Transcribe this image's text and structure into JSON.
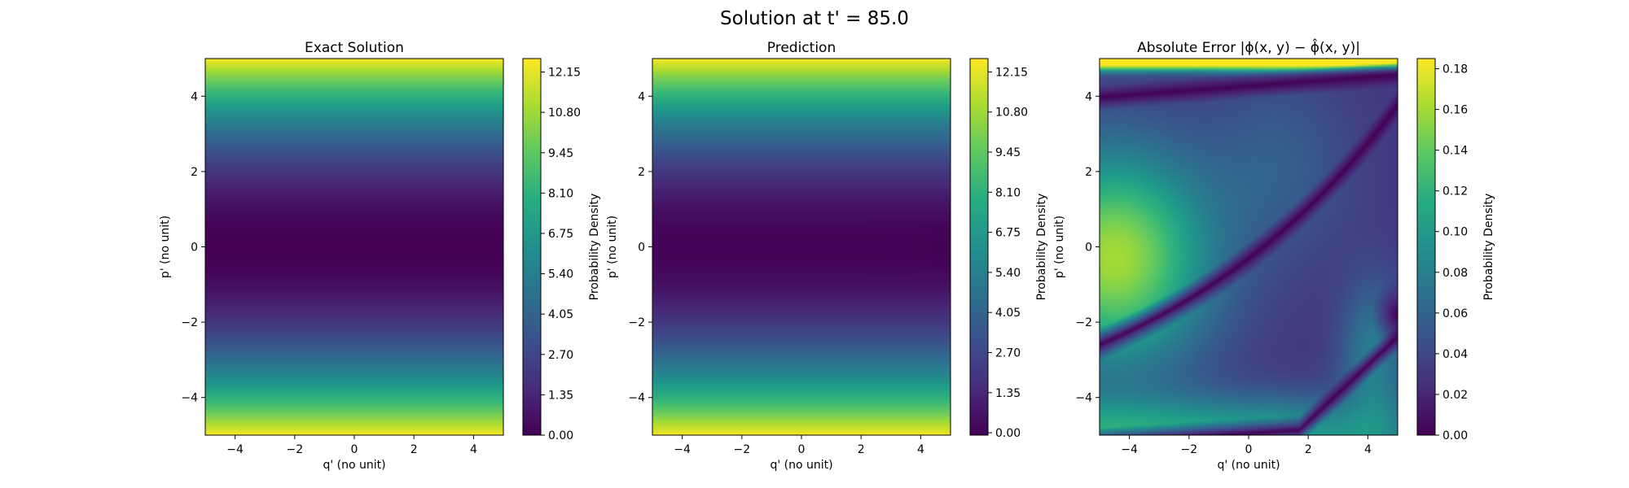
{
  "figure": {
    "suptitle": "Solution at t' = 85.0"
  },
  "chart_data": [
    {
      "type": "heatmap",
      "title": "Exact Solution",
      "xlabel": "q' (no unit)",
      "ylabel": "p' (no unit)",
      "xlim": [
        -5,
        5
      ],
      "ylim": [
        -5,
        5
      ],
      "xticks": [
        -4,
        -2,
        0,
        2,
        4
      ],
      "yticks": [
        4,
        2,
        0,
        -2,
        -4
      ],
      "xtick_labels": [
        "−4",
        "−2",
        "0",
        "2",
        "4"
      ],
      "ytick_labels": [
        "4",
        "2",
        "0",
        "−2",
        "−4"
      ],
      "colormap": "viridis",
      "colorbar": {
        "label": "Probability Density",
        "range": [
          0,
          12.6
        ],
        "ticks": [
          0,
          1.35,
          2.7,
          4.05,
          5.4,
          6.75,
          8.1,
          9.45,
          10.8,
          12.15
        ],
        "tick_labels": [
          "0.00",
          "1.35",
          "2.70",
          "4.05",
          "5.40",
          "6.75",
          "8.10",
          "9.45",
          "10.80",
          "12.15"
        ]
      },
      "field": "p^2 / 2"
    },
    {
      "type": "heatmap",
      "title": "Prediction",
      "xlabel": "q' (no unit)",
      "ylabel": "p' (no unit)",
      "xlim": [
        -5,
        5
      ],
      "ylim": [
        -5,
        5
      ],
      "xticks": [
        -4,
        -2,
        0,
        2,
        4
      ],
      "yticks": [
        4,
        2,
        0,
        -2,
        -4
      ],
      "xtick_labels": [
        "−4",
        "−2",
        "0",
        "2",
        "4"
      ],
      "ytick_labels": [
        "4",
        "2",
        "0",
        "−2",
        "−4"
      ],
      "colormap": "viridis",
      "colorbar": {
        "label": "Probability Density",
        "range": [
          -0.08,
          12.6
        ],
        "ticks": [
          0,
          1.35,
          2.7,
          4.05,
          5.4,
          6.75,
          8.1,
          9.45,
          10.8,
          12.15
        ],
        "tick_labels": [
          "0.00",
          "1.35",
          "2.70",
          "4.05",
          "5.40",
          "6.75",
          "8.10",
          "9.45",
          "10.80",
          "12.15"
        ]
      },
      "field": "p^2 / 2 (approx.)"
    },
    {
      "type": "heatmap",
      "title": "Absolute Error |ϕ(x, y) − ϕ̂(x, y)|",
      "xlabel": "q' (no unit)",
      "ylabel": "p' (no unit)",
      "xlim": [
        -5,
        5
      ],
      "ylim": [
        -5,
        5
      ],
      "xticks": [
        -4,
        -2,
        0,
        2,
        4
      ],
      "yticks": [
        4,
        2,
        0,
        -2,
        -4
      ],
      "xtick_labels": [
        "−4",
        "−2",
        "0",
        "2",
        "4"
      ],
      "ytick_labels": [
        "4",
        "2",
        "0",
        "−2",
        "−4"
      ],
      "colormap": "viridis",
      "colorbar": {
        "label": "Probability Density",
        "range": [
          0,
          0.185
        ],
        "ticks": [
          0,
          0.02,
          0.04,
          0.06,
          0.08,
          0.1,
          0.12,
          0.14,
          0.16,
          0.18
        ],
        "tick_labels": [
          "0.00",
          "0.02",
          "0.04",
          "0.06",
          "0.08",
          "0.10",
          "0.12",
          "0.14",
          "0.16",
          "0.18"
        ]
      },
      "field": "error"
    }
  ]
}
